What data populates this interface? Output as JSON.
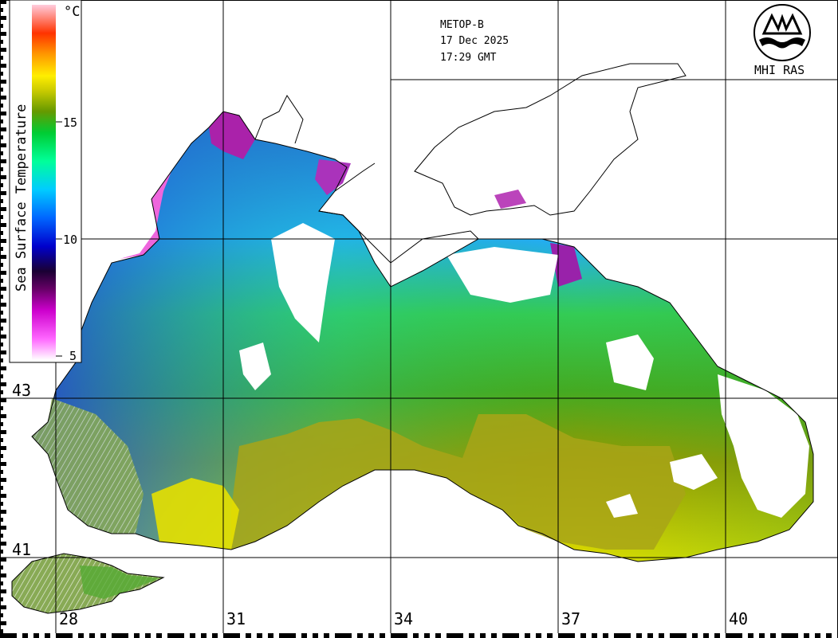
{
  "header": {
    "satellite": "METOP-B",
    "date": "17 Dec 2025",
    "time": "17:29 GMT"
  },
  "logo": {
    "text": "MHI RAS"
  },
  "legend": {
    "title": "Sea Surface Temperature",
    "unit": "°C",
    "ticks": [
      "15",
      "10",
      "5"
    ],
    "colors": [
      "#ff66cc",
      "#cc00cc",
      "#660066",
      "#000033",
      "#0000cc",
      "#0066ff",
      "#00ccff",
      "#00ff99",
      "#00cc33",
      "#009900",
      "#669900",
      "#cccc00",
      "#ffff00",
      "#ff9900",
      "#ff3300",
      "#ff9999",
      "#ffffff"
    ]
  },
  "grid": {
    "longitudes": [
      "28",
      "31",
      "34",
      "37",
      "40"
    ],
    "latitudes": [
      "43",
      "41"
    ]
  }
}
